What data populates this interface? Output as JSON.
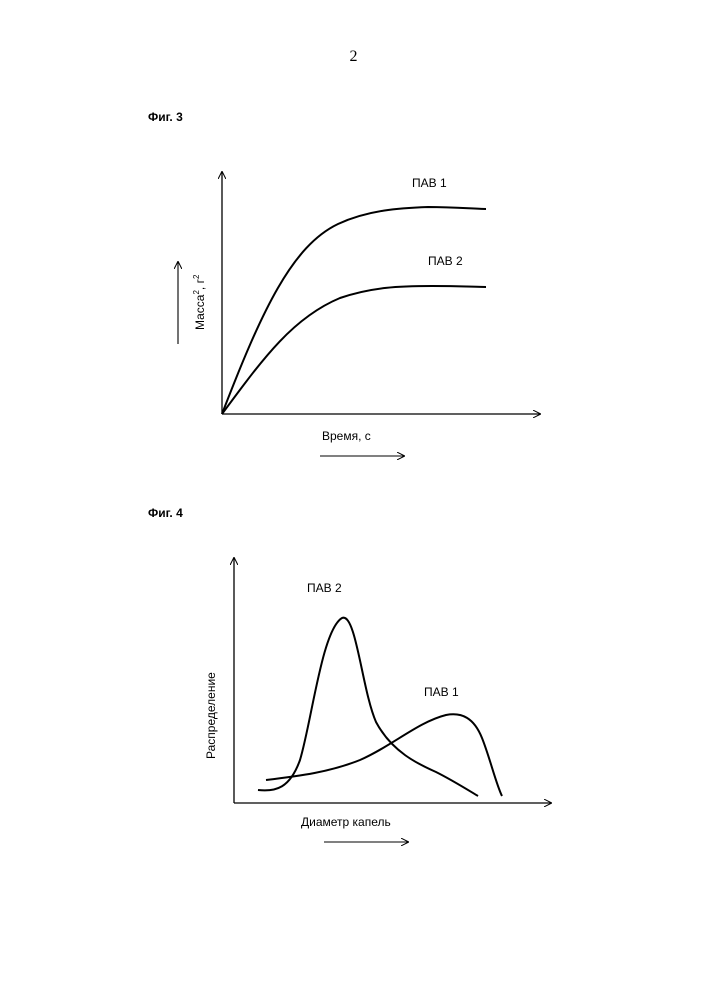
{
  "page_number": "2",
  "figures": [
    {
      "label": "Фиг. 3",
      "series_labels": [
        "ПАВ 1",
        "ПАВ 2"
      ],
      "y_axis_label": {
        "base": "Масса",
        "sup1": "2",
        "mid": ", г",
        "sup2": "2"
      },
      "x_axis_label": "Время, с"
    },
    {
      "label": "Фиг. 4",
      "series_labels": [
        "ПАВ 2",
        "ПАВ 1"
      ],
      "y_axis_label": "Распределение",
      "x_axis_label": "Диаметр капель"
    }
  ],
  "chart_data": [
    {
      "type": "line",
      "title": "Фиг. 3",
      "xlabel": "Время, с",
      "ylabel": "Масса², г²",
      "grid": false,
      "series": [
        {
          "name": "ПАВ 1",
          "shape": "rises quickly then plateaus at the higher level"
        },
        {
          "name": "ПАВ 2",
          "shape": "rises more slowly then plateaus at the lower level"
        }
      ]
    },
    {
      "type": "line",
      "title": "Фиг. 4",
      "xlabel": "Диаметр капель",
      "ylabel": "Распределение",
      "grid": false,
      "series": [
        {
          "name": "ПАВ 2",
          "shape": "narrow tall peak at small droplet diameter"
        },
        {
          "name": "ПАВ 1",
          "shape": "broad lower peak at larger droplet diameter"
        }
      ]
    }
  ]
}
